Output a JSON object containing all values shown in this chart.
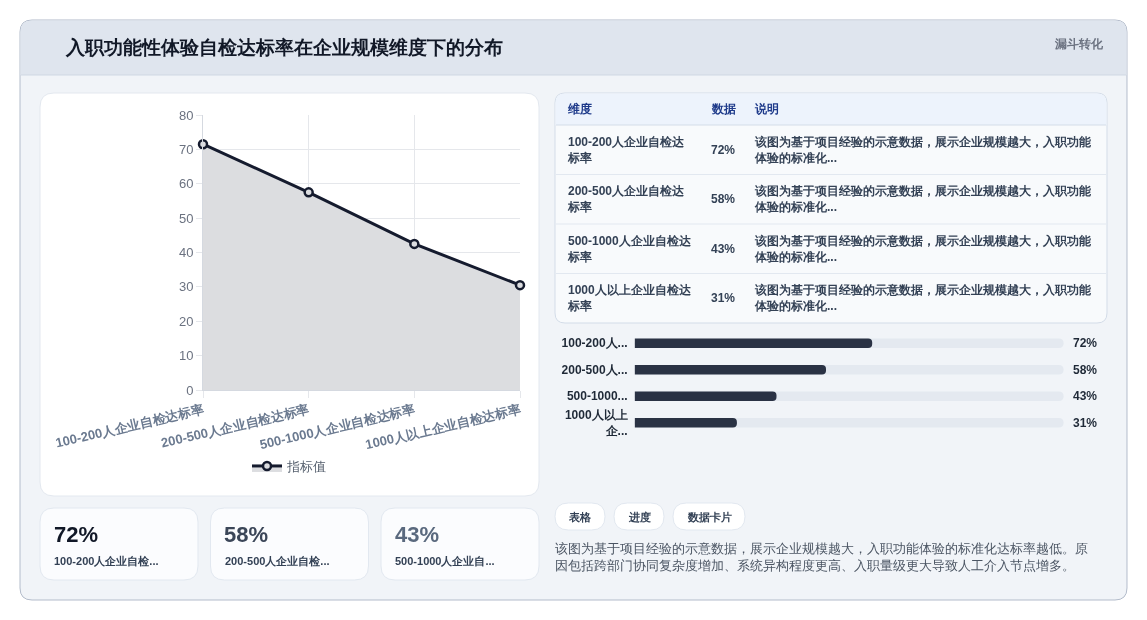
{
  "chart_data": [
    {
      "type": "other",
      "title": "入职功能性体验自检达标率在企业规模维度下的分布",
      "annotations": [
        "漏斗转化"
      ]
    },
    {
      "type": "area",
      "categories": [
        "100-200人企业自检达标率",
        "200-500人企业自检达标率",
        "500-1000人企业自检达标率",
        "1000人以上企业自检达标率"
      ],
      "series": [
        {
          "name": "指标值",
          "color": "#151b2e",
          "values": [
            71.5,
            57.5,
            42.5,
            30.5
          ]
        }
      ],
      "ylim": [
        0,
        80
      ],
      "yticks": [
        0,
        10,
        20,
        30,
        40,
        50,
        60,
        70,
        80
      ],
      "grid": true,
      "legend": "bottom",
      "marker": "circle"
    },
    {
      "type": "other",
      "annotations": [
        "维度",
        "数据",
        "说明",
        "100-200人企业自检达标率",
        "72%",
        "该图为基于项目经验的示意数据，展示企业规模越大，入职功能体验的标准化...",
        "200-500人企业自检达标率",
        "58%",
        "该图为基于项目经验的示意数据，展示企业规模越大，入职功能体验的标准化...",
        "500-1000人企业自检达标率",
        "43%",
        "该图为基于项目经验的示意数据，展示企业规模越大，入职功能体验的标准化...",
        "1000人以上企业自检达标率",
        "31%",
        "该图为基于项目经验的示意数据，展示企业规模越大，入职功能体验的标准化..."
      ]
    },
    {
      "type": "bar",
      "orientation": "horizontal",
      "categories": [
        "100-200人...",
        "200-500人...",
        "500-1000...",
        "1000人以上企..."
      ],
      "values": [
        72,
        58,
        43,
        31
      ],
      "value_labels": [
        "72%",
        "58%",
        "43%",
        "31%"
      ],
      "color": "#2a3244",
      "xlim": [
        0,
        130
      ],
      "tick_labels": "y"
    },
    {
      "type": "other",
      "annotations": [
        "72%",
        "100-200人企业自检...",
        "58%",
        "200-500人企业自检...",
        "43%",
        "500-1000人企业自..."
      ],
      "colors": [
        "#111827",
        "#3b4658",
        "#5a697e"
      ]
    },
    {
      "type": "other",
      "annotations": [
        "表格",
        "进度",
        "数据卡片",
        "该图为基于项目经验的示意数据，展示企业规模越大，入职功能体验的标准化达标率越低。原因包括跨部门协同复杂度增加、系统异构程度更高、入职量级更大导致人工介入节点增多。"
      ]
    }
  ]
}
